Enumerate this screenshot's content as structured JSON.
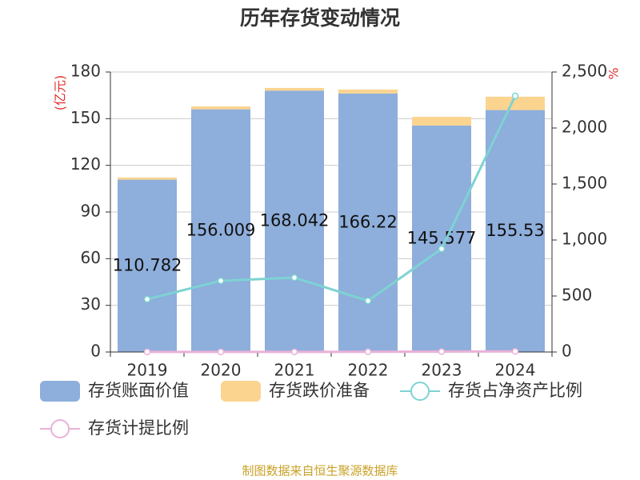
{
  "chart_data": {
    "type": "bar-line",
    "title": "历年存货变动情况",
    "y_label": "(亿元)",
    "y2_label": "%",
    "source": "制图数据来自恒生聚源数据库",
    "categories": [
      "2019",
      "2020",
      "2021",
      "2022",
      "2023",
      "2024"
    ],
    "series": [
      {
        "name": "存货账面价值",
        "type": "bar",
        "color": "#8eaedb",
        "values": [
          110.782,
          156.009,
          168.042,
          166.22,
          145.577,
          155.53
        ]
      },
      {
        "name": "存货跌价准备",
        "type": "bar",
        "color": "#fbd48f",
        "values": [
          1.4,
          1.9,
          1.7,
          2.5,
          5.6,
          8.6
        ]
      },
      {
        "name": "存货占净资产比例",
        "type": "line",
        "axis": "y2",
        "color": "#7dd3d3",
        "values": [
          471,
          636,
          664,
          457,
          921,
          2286
        ]
      },
      {
        "name": "存货计提比例",
        "type": "line",
        "axis": "y2",
        "color": "#e9b1d8",
        "values": [
          1.3,
          1.2,
          1.0,
          1.5,
          3.7,
          5.2
        ]
      }
    ],
    "ylim": [
      0,
      180
    ],
    "yticks": [
      0,
      30,
      60,
      90,
      120,
      150,
      180
    ],
    "y2lim": [
      0,
      2500
    ],
    "y2ticks": [
      0,
      500,
      {
        "value": 1000,
        "label": "1,000"
      },
      {
        "value": 1500,
        "label": "1,500"
      },
      {
        "value": 2000,
        "label": "2,000"
      },
      {
        "value": 2500,
        "label": "2,500"
      }
    ],
    "grid": true
  }
}
